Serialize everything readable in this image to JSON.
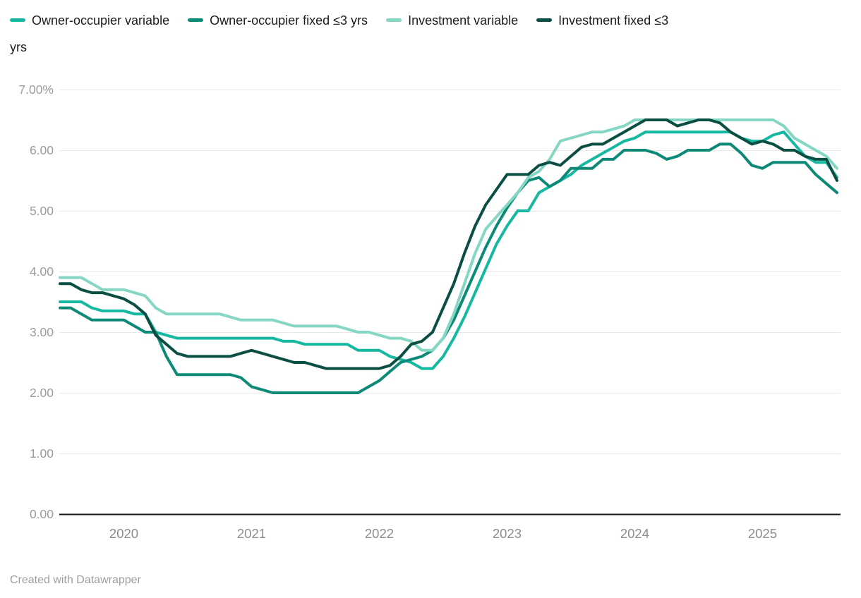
{
  "footer": {
    "text": "Created with Datawrapper"
  },
  "chart_data": {
    "type": "line",
    "title": "",
    "legend_position": "top",
    "grid": "horizontal",
    "ylim": [
      0,
      7
    ],
    "x": [
      "2019-07",
      "2019-08",
      "2019-09",
      "2019-10",
      "2019-11",
      "2019-12",
      "2020-01",
      "2020-02",
      "2020-03",
      "2020-04",
      "2020-05",
      "2020-06",
      "2020-07",
      "2020-08",
      "2020-09",
      "2020-10",
      "2020-11",
      "2020-12",
      "2021-01",
      "2021-02",
      "2021-03",
      "2021-04",
      "2021-05",
      "2021-06",
      "2021-07",
      "2021-08",
      "2021-09",
      "2021-10",
      "2021-11",
      "2021-12",
      "2022-01",
      "2022-02",
      "2022-03",
      "2022-04",
      "2022-05",
      "2022-06",
      "2022-07",
      "2022-08",
      "2022-09",
      "2022-10",
      "2022-11",
      "2022-12",
      "2023-01",
      "2023-02",
      "2023-03",
      "2023-04",
      "2023-05",
      "2023-06",
      "2023-07",
      "2023-08",
      "2023-09",
      "2023-10",
      "2023-11",
      "2023-12",
      "2024-01",
      "2024-02",
      "2024-03",
      "2024-04",
      "2024-05",
      "2024-06",
      "2024-07",
      "2024-08",
      "2024-09",
      "2024-10",
      "2024-11",
      "2024-12",
      "2025-01",
      "2025-02",
      "2025-03",
      "2025-04",
      "2025-05",
      "2025-06",
      "2025-07",
      "2025-08"
    ],
    "yticks": [
      {
        "label": "7.00%",
        "value": 7
      },
      {
        "label": "6.00",
        "value": 6
      },
      {
        "label": "5.00",
        "value": 5
      },
      {
        "label": "4.00",
        "value": 4
      },
      {
        "label": "3.00",
        "value": 3
      },
      {
        "label": "2.00",
        "value": 2
      },
      {
        "label": "1.00",
        "value": 1
      },
      {
        "label": "0.00",
        "value": 0
      }
    ],
    "xticks": [
      {
        "label": "2020",
        "month": "2020-01"
      },
      {
        "label": "2021",
        "month": "2021-01"
      },
      {
        "label": "2022",
        "month": "2022-01"
      },
      {
        "label": "2023",
        "month": "2023-01"
      },
      {
        "label": "2024",
        "month": "2024-01"
      },
      {
        "label": "2025",
        "month": "2025-01"
      }
    ],
    "series": [
      {
        "name": "Owner-occupier variable",
        "color": "#17b8a1",
        "values": [
          3.5,
          3.5,
          3.5,
          3.4,
          3.35,
          3.35,
          3.35,
          3.3,
          3.3,
          3.0,
          2.95,
          2.9,
          2.9,
          2.9,
          2.9,
          2.9,
          2.9,
          2.9,
          2.9,
          2.9,
          2.9,
          2.85,
          2.85,
          2.8,
          2.8,
          2.8,
          2.8,
          2.8,
          2.7,
          2.7,
          2.7,
          2.6,
          2.55,
          2.5,
          2.4,
          2.4,
          2.6,
          2.9,
          3.25,
          3.65,
          4.05,
          4.45,
          4.75,
          5.0,
          5.0,
          5.3,
          5.4,
          5.5,
          5.6,
          5.75,
          5.85,
          5.95,
          6.05,
          6.15,
          6.2,
          6.3,
          6.3,
          6.3,
          6.3,
          6.3,
          6.3,
          6.3,
          6.3,
          6.3,
          6.2,
          6.15,
          6.15,
          6.25,
          6.3,
          6.1,
          5.9,
          5.8,
          5.8,
          5.55
        ]
      },
      {
        "name": "Owner-occupier fixed ≤3 yrs",
        "color": "#0d8a77",
        "values": [
          3.4,
          3.4,
          3.3,
          3.2,
          3.2,
          3.2,
          3.2,
          3.1,
          3.0,
          3.0,
          2.6,
          2.3,
          2.3,
          2.3,
          2.3,
          2.3,
          2.3,
          2.25,
          2.1,
          2.05,
          2.0,
          2.0,
          2.0,
          2.0,
          2.0,
          2.0,
          2.0,
          2.0,
          2.0,
          2.1,
          2.2,
          2.35,
          2.5,
          2.55,
          2.6,
          2.7,
          2.9,
          3.2,
          3.6,
          4.0,
          4.4,
          4.75,
          5.05,
          5.3,
          5.5,
          5.55,
          5.4,
          5.5,
          5.7,
          5.7,
          5.7,
          5.85,
          5.85,
          6.0,
          6.0,
          6.0,
          5.95,
          5.85,
          5.9,
          6.0,
          6.0,
          6.0,
          6.1,
          6.1,
          5.95,
          5.75,
          5.7,
          5.8,
          5.8,
          5.8,
          5.8,
          5.6,
          5.45,
          5.3
        ]
      },
      {
        "name": "Investment variable",
        "color": "#85d7c4",
        "values": [
          3.9,
          3.9,
          3.9,
          3.8,
          3.7,
          3.7,
          3.7,
          3.65,
          3.6,
          3.4,
          3.3,
          3.3,
          3.3,
          3.3,
          3.3,
          3.3,
          3.25,
          3.2,
          3.2,
          3.2,
          3.2,
          3.15,
          3.1,
          3.1,
          3.1,
          3.1,
          3.1,
          3.05,
          3.0,
          3.0,
          2.95,
          2.9,
          2.9,
          2.85,
          2.7,
          2.7,
          2.9,
          3.3,
          3.8,
          4.3,
          4.7,
          4.9,
          5.1,
          5.3,
          5.55,
          5.65,
          5.85,
          6.15,
          6.2,
          6.25,
          6.3,
          6.3,
          6.35,
          6.4,
          6.5,
          6.5,
          6.5,
          6.5,
          6.5,
          6.5,
          6.5,
          6.5,
          6.5,
          6.5,
          6.5,
          6.5,
          6.5,
          6.5,
          6.4,
          6.2,
          6.1,
          6.0,
          5.9,
          5.7
        ]
      },
      {
        "name": "Investment fixed ≤3 yrs",
        "color": "#0b4f44",
        "values": [
          3.8,
          3.8,
          3.7,
          3.65,
          3.65,
          3.6,
          3.55,
          3.45,
          3.3,
          2.95,
          2.8,
          2.65,
          2.6,
          2.6,
          2.6,
          2.6,
          2.6,
          2.65,
          2.7,
          2.65,
          2.6,
          2.55,
          2.5,
          2.5,
          2.45,
          2.4,
          2.4,
          2.4,
          2.4,
          2.4,
          2.4,
          2.45,
          2.6,
          2.8,
          2.85,
          3.0,
          3.4,
          3.8,
          4.3,
          4.75,
          5.1,
          5.35,
          5.6,
          5.6,
          5.6,
          5.75,
          5.8,
          5.75,
          5.9,
          6.05,
          6.1,
          6.1,
          6.2,
          6.3,
          6.4,
          6.5,
          6.5,
          6.5,
          6.4,
          6.45,
          6.5,
          6.5,
          6.45,
          6.3,
          6.2,
          6.1,
          6.15,
          6.1,
          6.0,
          6.0,
          5.9,
          5.85,
          5.85,
          5.5
        ]
      }
    ]
  }
}
